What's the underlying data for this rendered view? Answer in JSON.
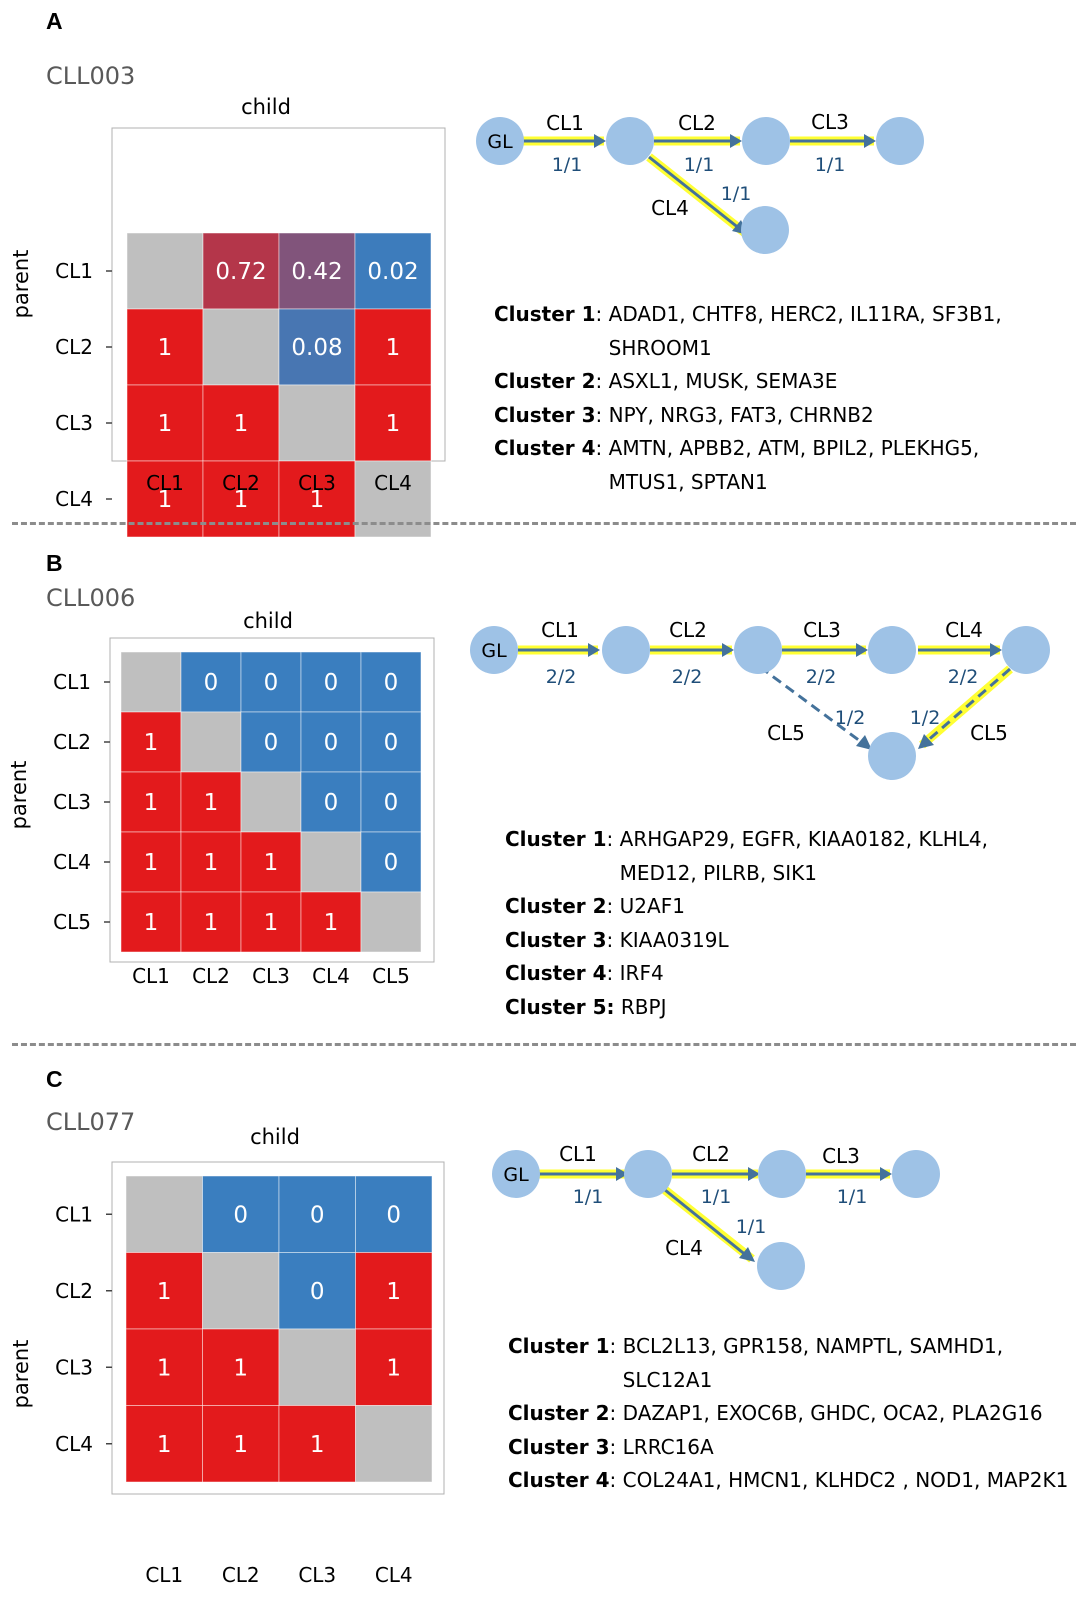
{
  "panels": [
    {
      "letter": "A",
      "sample": "CLL003",
      "heatmap": {
        "xlabel": "child",
        "ylabel": "parent",
        "labels": [
          "CL1",
          "CL2",
          "CL3",
          "CL4"
        ]
      },
      "tree": {
        "root": "GL",
        "edges": [
          {
            "name": "CL1",
            "fraction": "1/1"
          },
          {
            "name": "CL2",
            "fraction": "1/1"
          },
          {
            "name": "CL3",
            "fraction": "1/1"
          },
          {
            "name": "CL4",
            "fraction": "1/1"
          }
        ]
      },
      "clusters": [
        {
          "name": "Cluster 1",
          "genes": "ADAD1, CHTF8, HERC2, IL11RA, SF3B1, SHROOM1"
        },
        {
          "name": "Cluster 2",
          "genes": "ASXL1, MUSK, SEMA3E"
        },
        {
          "name": "Cluster 3",
          "genes": "NPY, NRG3, FAT3, CHRNB2"
        },
        {
          "name": "Cluster 4",
          "genes": "AMTN, APBB2, ATM, BPIL2, PLEKHG5, MTUS1, SPTAN1"
        }
      ]
    },
    {
      "letter": "B",
      "sample": "CLL006",
      "heatmap": {
        "xlabel": "child",
        "ylabel": "parent",
        "labels": [
          "CL1",
          "CL2",
          "CL3",
          "CL4",
          "CL5"
        ]
      },
      "tree": {
        "root": "GL",
        "edges": [
          {
            "name": "CL1",
            "fraction": "2/2"
          },
          {
            "name": "CL2",
            "fraction": "2/2"
          },
          {
            "name": "CL3",
            "fraction": "2/2"
          },
          {
            "name": "CL4",
            "fraction": "2/2"
          },
          {
            "name": "CL5",
            "fraction": "1/2"
          },
          {
            "name": "CL5",
            "fraction": "1/2"
          }
        ]
      },
      "clusters": [
        {
          "name": "Cluster 1",
          "genes": "ARHGAP29, EGFR, KIAA0182, KLHL4, MED12, PILRB, SIK1"
        },
        {
          "name": "Cluster 2",
          "genes": "U2AF1"
        },
        {
          "name": "Cluster 3",
          "genes": "KIAA0319L"
        },
        {
          "name": "Cluster 4",
          "genes": "IRF4"
        },
        {
          "name": "Cluster 5:",
          "genes": "RBPJ"
        }
      ]
    },
    {
      "letter": "C",
      "sample": "CLL077",
      "heatmap": {
        "xlabel": "child",
        "ylabel": "parent",
        "labels": [
          "CL1",
          "CL2",
          "CL3",
          "CL4"
        ]
      },
      "tree": {
        "root": "GL",
        "edges": [
          {
            "name": "CL1",
            "fraction": "1/1"
          },
          {
            "name": "CL2",
            "fraction": "1/1"
          },
          {
            "name": "CL3",
            "fraction": "1/1"
          },
          {
            "name": "CL4",
            "fraction": "1/1"
          }
        ]
      },
      "clusters": [
        {
          "name": "Cluster 1",
          "genes": "BCL2L13, GPR158, NAMPTL, SAMHD1, SLC12A1"
        },
        {
          "name": "Cluster 2",
          "genes": "DAZAP1, EXOC6B, GHDC, OCA2, PLA2G16"
        },
        {
          "name": "Cluster 3",
          "genes": "LRRC16A"
        },
        {
          "name": "Cluster 4",
          "genes": "COL24A1, HMCN1, KLHDC2 , NOD1, MAP2K1"
        }
      ]
    }
  ],
  "colors": {
    "high": "#e31a1c",
    "low": "#3a7ebf",
    "diagonal": "#bfbfbf",
    "node": "#9ec2e6",
    "edge": "#44729b",
    "highlight": "#ffff33",
    "fraction_text": "#1f4e79"
  },
  "chart_data": [
    {
      "type": "heatmap",
      "title": "CLL003",
      "xlabel": "child",
      "ylabel": "parent",
      "x": [
        "CL1",
        "CL2",
        "CL3",
        "CL4"
      ],
      "y": [
        "CL1",
        "CL2",
        "CL3",
        "CL4"
      ],
      "values": [
        [
          null,
          0.72,
          0.42,
          0.02
        ],
        [
          1,
          null,
          0.08,
          1
        ],
        [
          1,
          1,
          null,
          1
        ],
        [
          1,
          1,
          1,
          null
        ]
      ],
      "labels": [
        [
          "",
          "0.72",
          "0.42",
          "0.02"
        ],
        [
          "1",
          "",
          "0.08",
          "1"
        ],
        [
          "1",
          "1",
          "",
          "1"
        ],
        [
          "1",
          "1",
          "1",
          ""
        ]
      ]
    },
    {
      "type": "heatmap",
      "title": "CLL006",
      "xlabel": "child",
      "ylabel": "parent",
      "x": [
        "CL1",
        "CL2",
        "CL3",
        "CL4",
        "CL5"
      ],
      "y": [
        "CL1",
        "CL2",
        "CL3",
        "CL4",
        "CL5"
      ],
      "values": [
        [
          null,
          0,
          0,
          0,
          0
        ],
        [
          1,
          null,
          0,
          0,
          0
        ],
        [
          1,
          1,
          null,
          0,
          0
        ],
        [
          1,
          1,
          1,
          null,
          0
        ],
        [
          1,
          1,
          1,
          1,
          null
        ]
      ],
      "labels": [
        [
          "",
          "0",
          "0",
          "0",
          "0"
        ],
        [
          "1",
          "",
          "0",
          "0",
          "0"
        ],
        [
          "1",
          "1",
          "",
          "0",
          "0"
        ],
        [
          "1",
          "1",
          "1",
          "",
          "0"
        ],
        [
          "1",
          "1",
          "1",
          "1",
          ""
        ]
      ]
    },
    {
      "type": "heatmap",
      "title": "CLL077",
      "xlabel": "child",
      "ylabel": "parent",
      "x": [
        "CL1",
        "CL2",
        "CL3",
        "CL4"
      ],
      "y": [
        "CL1",
        "CL2",
        "CL3",
        "CL4"
      ],
      "values": [
        [
          null,
          0,
          0,
          0
        ],
        [
          1,
          null,
          0,
          1
        ],
        [
          1,
          1,
          null,
          1
        ],
        [
          1,
          1,
          1,
          null
        ]
      ],
      "labels": [
        [
          "",
          "0",
          "0",
          "0"
        ],
        [
          "1",
          "",
          "0",
          "1"
        ],
        [
          "1",
          "1",
          "",
          "1"
        ],
        [
          "1",
          "1",
          "1",
          ""
        ]
      ]
    }
  ]
}
